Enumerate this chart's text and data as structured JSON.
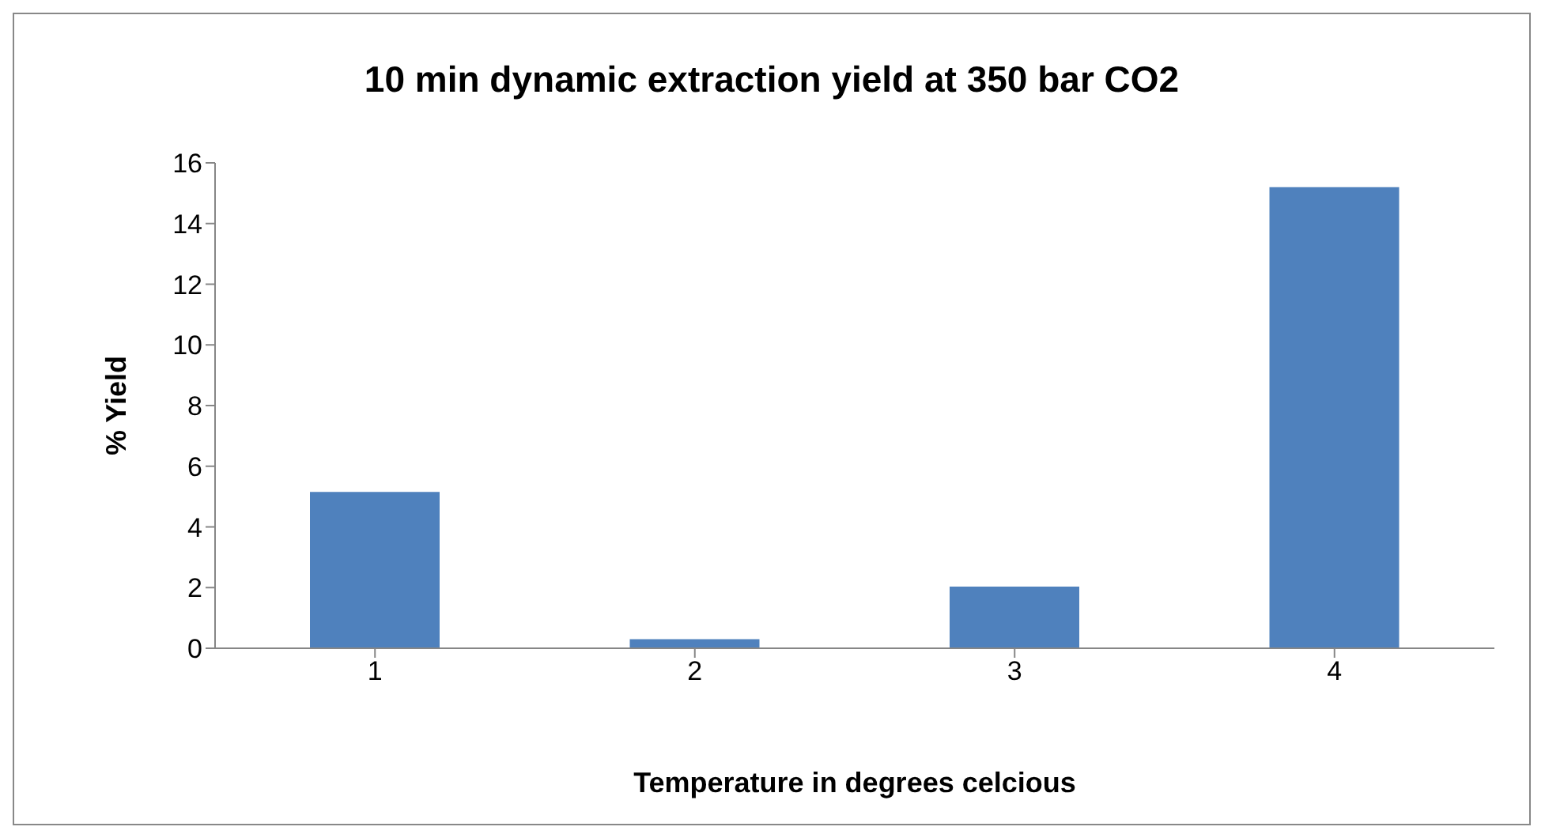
{
  "chart_data": {
    "type": "bar",
    "title": "10 min dynamic extraction yield at 350 bar CO2",
    "xlabel": "Temperature in degrees celcious",
    "ylabel": "% Yield",
    "categories": [
      "1",
      "2",
      "3",
      "4"
    ],
    "values": [
      5.15,
      0.3,
      2.03,
      15.2
    ],
    "color": "#4f81bd",
    "ylim": [
      0,
      16
    ],
    "yticks": [
      0,
      2,
      4,
      6,
      8,
      10,
      12,
      14,
      16
    ],
    "grid": false,
    "legend": false
  }
}
